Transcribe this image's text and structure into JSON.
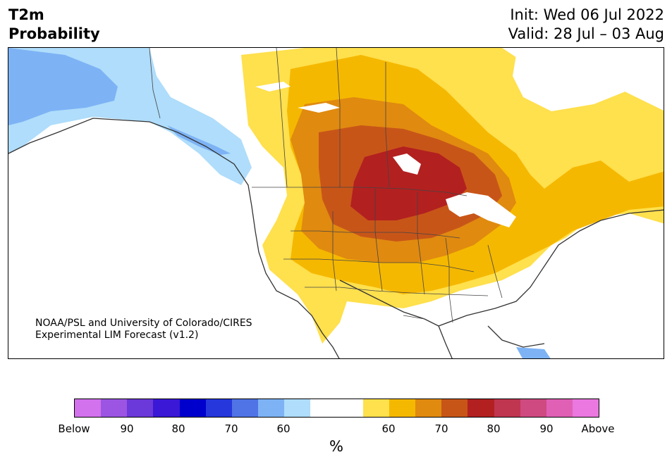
{
  "header": {
    "title_line1": "T2m",
    "title_line2": "Probability",
    "init": "Init: Wed 06 Jul 2022",
    "valid": "Valid: 28 Jul – 03 Aug"
  },
  "map": {
    "credit_line1": "NOAA/PSL and University of Colorado/CIRES",
    "credit_line2": "Experimental LIM Forecast (v1.2)"
  },
  "colorbar": {
    "colors": [
      "#d272ec",
      "#9b55e2",
      "#6b38d9",
      "#3a18d5",
      "#0000cc",
      "#2637db",
      "#5073e5",
      "#7db3f5",
      "#afddfb",
      "#ffffff",
      "#ffffff",
      "#ffe04d",
      "#f5b800",
      "#e08a10",
      "#c85518",
      "#b32020",
      "#c03550",
      "#ce4a80",
      "#e060b5",
      "#ea78e0"
    ],
    "ticks": [
      "Below",
      "90",
      "80",
      "70",
      "60",
      "60",
      "70",
      "80",
      "90",
      "Above"
    ],
    "unit": "%"
  }
}
